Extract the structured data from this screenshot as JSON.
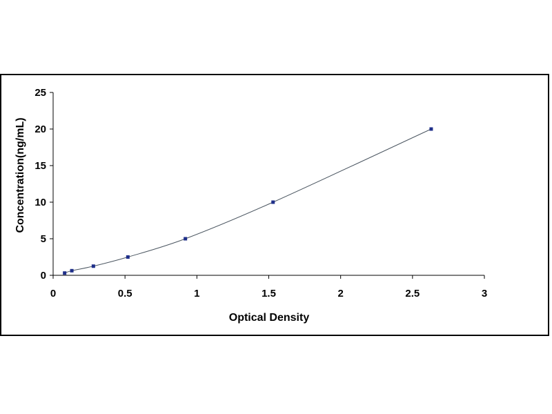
{
  "chart_data": {
    "type": "scatter",
    "title": "",
    "xlabel": "Optical Density",
    "ylabel": "Concentration(ng/mL)",
    "xlim": [
      0,
      3
    ],
    "ylim": [
      0,
      25
    ],
    "x_ticks": [
      "0",
      "0.5",
      "1",
      "1.5",
      "2",
      "2.5",
      "3"
    ],
    "y_ticks": [
      "0",
      "5",
      "10",
      "15",
      "20",
      "25"
    ],
    "grid": false,
    "legend": "none",
    "series": [
      {
        "points": [
          {
            "x": 0.08,
            "y": 0.31
          },
          {
            "x": 0.13,
            "y": 0.63
          },
          {
            "x": 0.28,
            "y": 1.25
          },
          {
            "x": 0.52,
            "y": 2.5
          },
          {
            "x": 0.92,
            "y": 5
          },
          {
            "x": 1.53,
            "y": 10
          },
          {
            "x": 2.63,
            "y": 20
          }
        ],
        "marker_color": "#1f2f8a",
        "curve_color": "#4a5560"
      }
    ]
  }
}
